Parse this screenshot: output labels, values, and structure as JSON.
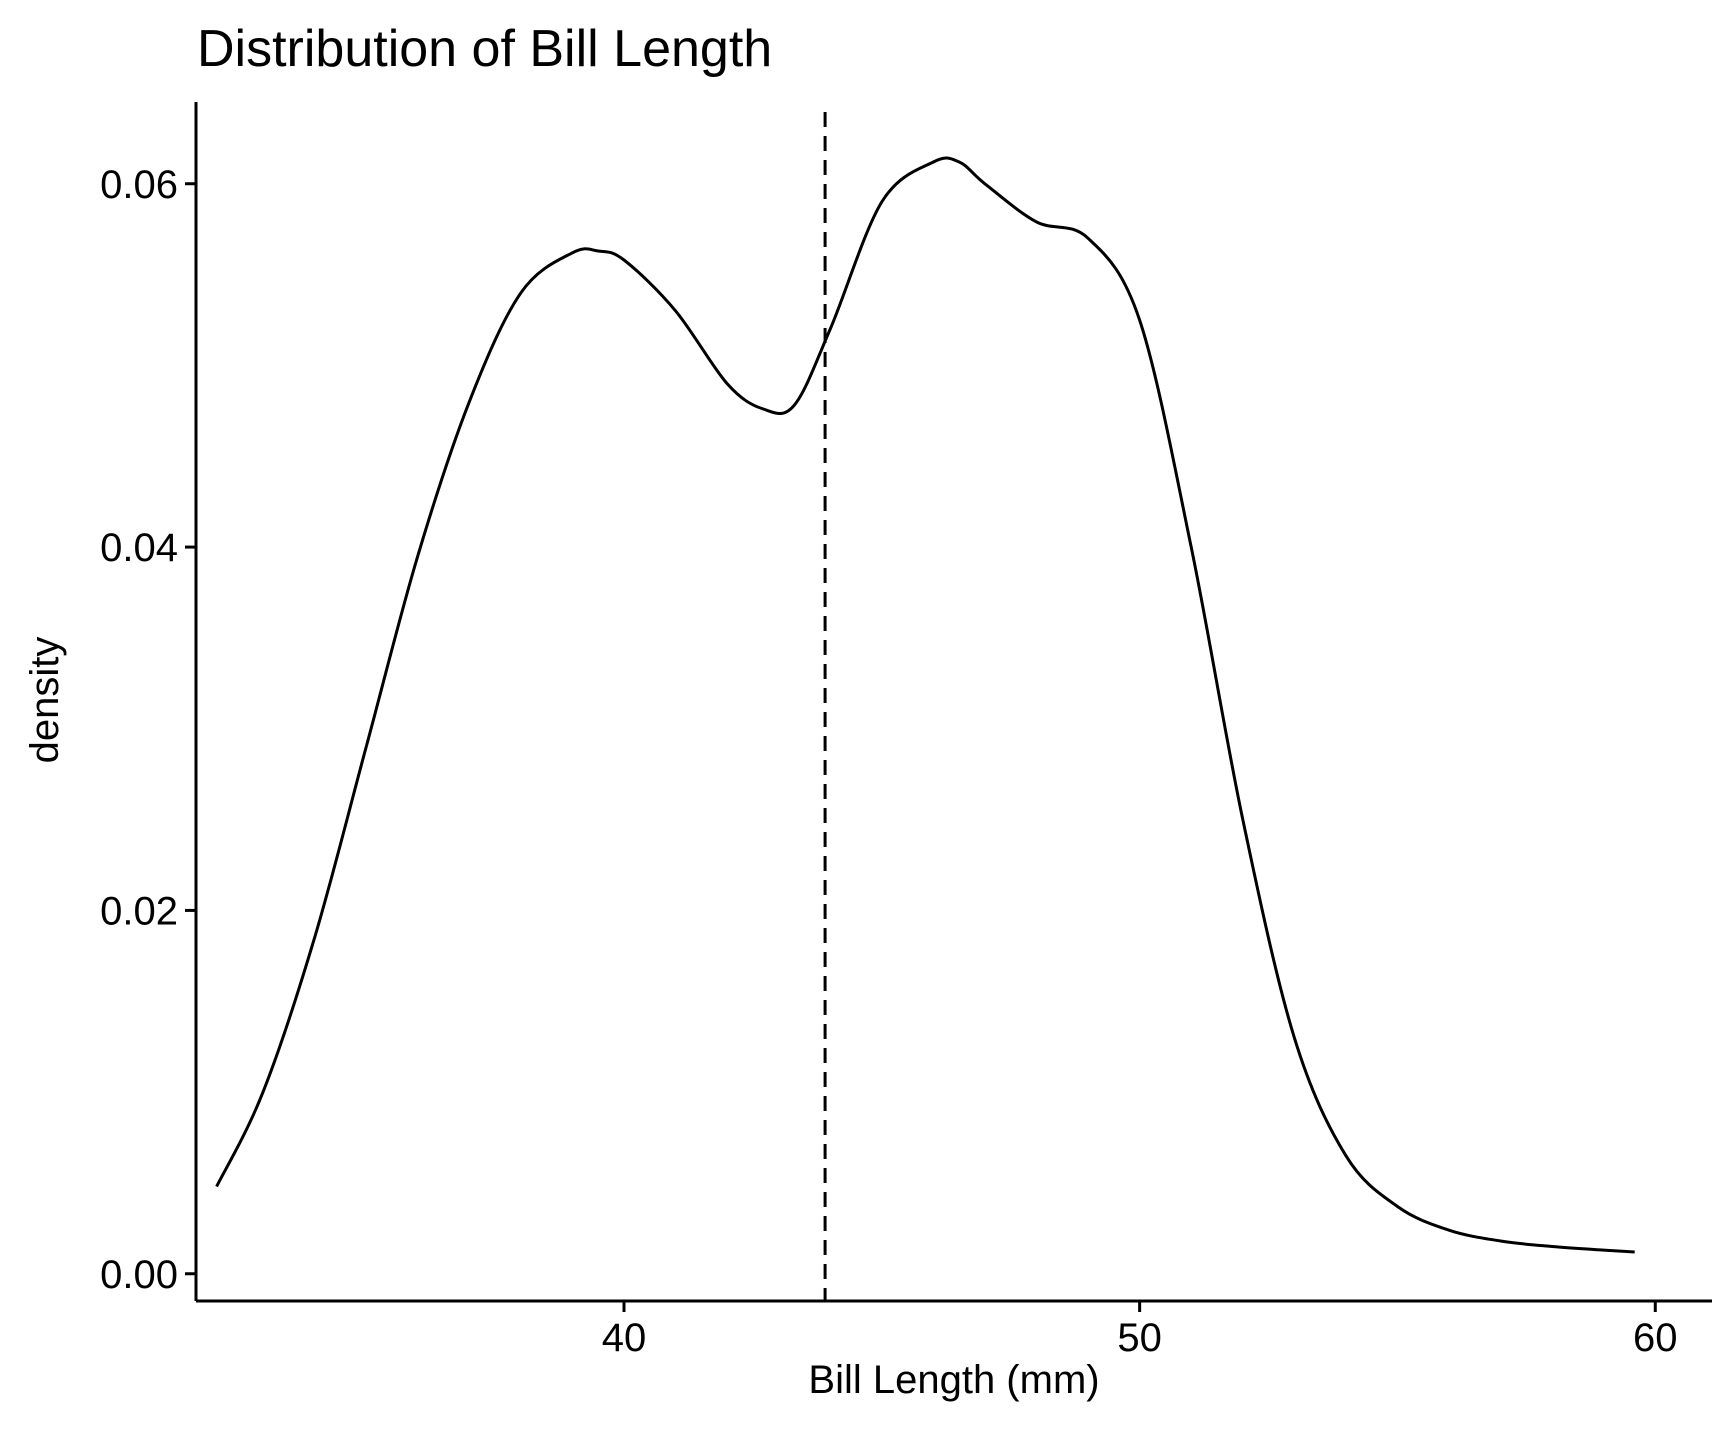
{
  "chart_data": {
    "type": "line",
    "title": "Distribution of Bill Length",
    "xlabel": "Bill Length (mm)",
    "ylabel": "density",
    "xlim": [
      31.7,
      61.1
    ],
    "ylim": [
      -0.0015,
      0.0645
    ],
    "x_ticks": [
      40,
      50,
      60
    ],
    "x_tick_labels": [
      "40",
      "50",
      "60"
    ],
    "y_ticks": [
      0.0,
      0.02,
      0.04,
      0.06
    ],
    "y_tick_labels": [
      "0.00",
      "0.02",
      "0.04",
      "0.06"
    ],
    "grid": false,
    "reference_lines": [
      {
        "orientation": "vertical",
        "x": 43.9,
        "style": "dashed"
      }
    ],
    "series": [
      {
        "x": [
          32.1,
          33.0,
          34.0,
          35.0,
          36.0,
          37.0,
          38.0,
          39.0,
          39.5,
          40.0,
          41.0,
          42.0,
          42.7,
          43.3,
          44.0,
          45.0,
          46.0,
          46.5,
          47.0,
          48.0,
          49.0,
          50.0,
          51.0,
          52.0,
          53.0,
          54.0,
          55.0,
          56.0,
          57.0,
          58.0,
          59.0,
          59.6
        ],
        "y": [
          0.0048,
          0.01,
          0.0185,
          0.029,
          0.0395,
          0.048,
          0.054,
          0.0562,
          0.0563,
          0.0558,
          0.053,
          0.049,
          0.0476,
          0.0478,
          0.052,
          0.059,
          0.0612,
          0.0612,
          0.06,
          0.0579,
          0.057,
          0.0525,
          0.04,
          0.025,
          0.013,
          0.0065,
          0.0037,
          0.0024,
          0.0018,
          0.0015,
          0.0013,
          0.0012
        ]
      }
    ]
  }
}
